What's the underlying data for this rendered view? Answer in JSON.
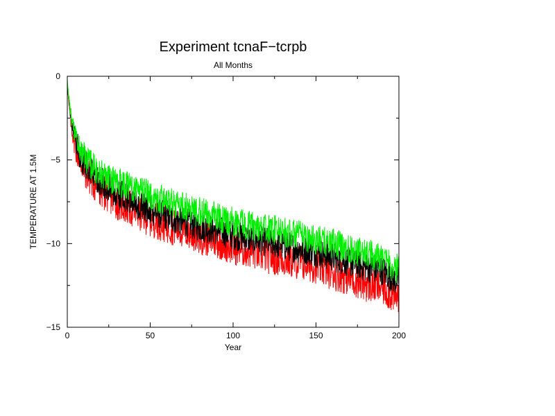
{
  "chart_data": {
    "type": "line",
    "title": "Experiment tcnaF−tcrpb",
    "subtitle": "All Months",
    "xlabel": "Year",
    "ylabel": "TEMPERATURE AT 1.5M",
    "xlim": [
      0,
      200
    ],
    "ylim": [
      -15,
      0
    ],
    "xticks": [
      0,
      50,
      100,
      150,
      200
    ],
    "yticks": [
      -15,
      -10,
      -5,
      0
    ],
    "xtick_labels": [
      "0",
      "50",
      "100",
      "150",
      "200"
    ],
    "ytick_labels": [
      "−15",
      "−10",
      "−5",
      "0"
    ],
    "grid": false,
    "legend": "none",
    "series": [
      {
        "color": "#ff0000",
        "x": [
          0,
          1,
          2,
          3,
          5,
          7,
          10,
          15,
          20,
          25,
          30,
          40,
          50,
          60,
          70,
          80,
          90,
          100,
          110,
          120,
          130,
          140,
          150,
          160,
          170,
          180,
          190,
          198,
          200
        ],
        "y": [
          -0.5,
          -1.8,
          -2.6,
          -3.3,
          -4.2,
          -4.8,
          -5.5,
          -6.3,
          -6.8,
          -7.1,
          -7.5,
          -8.0,
          -8.5,
          -8.9,
          -9.2,
          -9.6,
          -9.8,
          -10.2,
          -10.4,
          -10.7,
          -10.9,
          -11.1,
          -11.3,
          -11.7,
          -12.0,
          -12.4,
          -12.6,
          -13.2,
          -13.0
        ]
      },
      {
        "color": "#000000",
        "x": [
          0,
          1,
          2,
          3,
          5,
          7,
          10,
          15,
          20,
          25,
          30,
          40,
          50,
          60,
          70,
          80,
          90,
          100,
          110,
          120,
          130,
          140,
          150,
          160,
          170,
          180,
          190,
          198,
          200
        ],
        "y": [
          -0.4,
          -1.5,
          -2.3,
          -3.0,
          -3.9,
          -4.5,
          -5.1,
          -5.8,
          -6.3,
          -6.6,
          -7.0,
          -7.5,
          -8.0,
          -8.4,
          -8.7,
          -9.0,
          -9.2,
          -9.5,
          -9.7,
          -9.9,
          -10.1,
          -10.3,
          -10.5,
          -10.8,
          -11.1,
          -11.4,
          -11.6,
          -12.2,
          -12.0
        ]
      },
      {
        "color": "#00ee00",
        "x": [
          0,
          1,
          2,
          3,
          5,
          7,
          10,
          15,
          20,
          25,
          30,
          40,
          50,
          60,
          70,
          80,
          90,
          100,
          110,
          120,
          130,
          140,
          150,
          160,
          170,
          180,
          190,
          198,
          200
        ],
        "y": [
          -0.3,
          -1.3,
          -2.1,
          -2.8,
          -3.6,
          -4.2,
          -4.8,
          -5.4,
          -5.8,
          -6.0,
          -6.3,
          -6.7,
          -7.1,
          -7.5,
          -7.8,
          -8.1,
          -8.4,
          -8.7,
          -8.9,
          -9.1,
          -9.3,
          -9.5,
          -9.8,
          -10.0,
          -10.3,
          -10.6,
          -10.8,
          -11.6,
          -11.3
        ]
      }
    ]
  }
}
